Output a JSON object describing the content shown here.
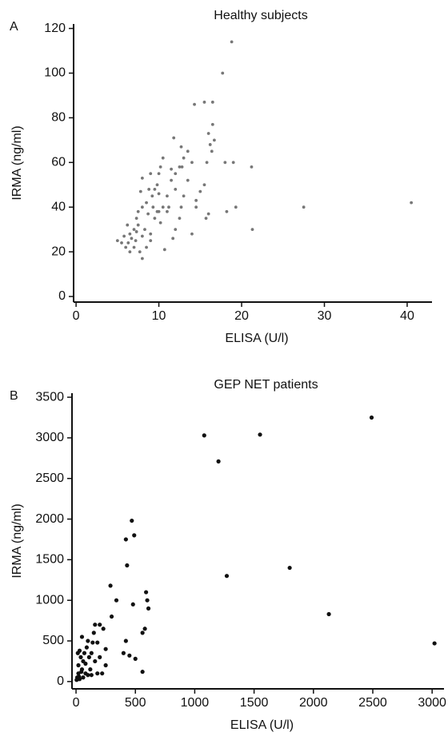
{
  "chart_data": [
    {
      "type": "scatter",
      "panel_label": "A",
      "title": "Healthy subjects",
      "x_label": "ELISA (U/l)",
      "y_label": "IRMA (ng/ml)",
      "color": "#777777",
      "xlim": [
        -0.3,
        43
      ],
      "ylim": [
        -2.5,
        122
      ],
      "xticks": [
        0,
        10,
        20,
        30,
        40
      ],
      "yticks": [
        0,
        20,
        40,
        60,
        80,
        100,
        120
      ],
      "grid": false,
      "x": [
        18.8,
        17.7,
        40.5,
        27.5,
        21.2,
        21.3,
        19,
        18,
        19.3,
        18.2,
        16.5,
        15.5,
        14.3,
        16.5,
        16,
        16.7,
        16.2,
        16.4,
        15.8,
        15.5,
        15,
        14.5,
        16,
        15.7,
        14,
        13.5,
        13,
        12.7,
        13.5,
        14,
        12.5,
        11.8,
        12,
        11.5,
        12,
        11,
        11.2,
        12.7,
        12.5,
        12,
        11.7,
        10.7,
        10.5,
        10.2,
        10,
        9.8,
        9.5,
        10,
        9.2,
        9,
        8.8,
        8.5,
        8,
        7.8,
        8,
        7.5,
        7.3,
        7.5,
        7,
        8.3,
        8,
        7.2,
        6.5,
        6.3,
        6,
        6.5,
        5.8,
        5.5,
        5,
        6.2,
        7,
        8,
        8.5,
        9,
        9.5,
        10,
        10.5,
        10.2,
        9.3,
        8.7,
        13,
        14.5,
        11,
        9,
        7.7,
        6.7,
        7.3,
        9.8,
        11.5,
        12.8
      ],
      "y": [
        114,
        100,
        42,
        40,
        58,
        30,
        60,
        60,
        40,
        38,
        87,
        87,
        86,
        77,
        73,
        70,
        68,
        65,
        60,
        50,
        47,
        40,
        37,
        35,
        28,
        52,
        62,
        67,
        65,
        60,
        58,
        71,
        55,
        52,
        48,
        45,
        40,
        40,
        35,
        30,
        26,
        21,
        62,
        58,
        55,
        50,
        48,
        46,
        45,
        55,
        48,
        42,
        53,
        47,
        40,
        38,
        35,
        32,
        30,
        30,
        27,
        25,
        28,
        24,
        22,
        20,
        27,
        24,
        25,
        32,
        22,
        17,
        22,
        25,
        35,
        38,
        40,
        33,
        40,
        37,
        45,
        43,
        38,
        28,
        20,
        26,
        29,
        38,
        57,
        58
      ]
    },
    {
      "type": "scatter",
      "panel_label": "B",
      "title": "GEP NET patients",
      "x_label": "ELISA (U/l)",
      "y_label": "IRMA (ng/ml)",
      "color": "#111111",
      "xlim": [
        -34,
        3100
      ],
      "ylim": [
        -90,
        3550
      ],
      "xticks": [
        0,
        500,
        1000,
        1500,
        2000,
        2500,
        3000
      ],
      "yticks": [
        0,
        500,
        1000,
        1500,
        2000,
        2500,
        3000,
        3500
      ],
      "grid": false,
      "x": [
        1080,
        1550,
        2490,
        1200,
        470,
        490,
        420,
        430,
        1270,
        1800,
        2130,
        3020,
        590,
        600,
        610,
        480,
        560,
        580,
        340,
        290,
        300,
        420,
        400,
        450,
        500,
        560,
        230,
        200,
        160,
        150,
        250,
        180,
        100,
        50,
        130,
        200,
        250,
        180,
        120,
        80,
        40,
        30,
        60,
        100,
        20,
        10,
        30,
        50,
        70,
        90,
        140,
        220,
        160,
        110,
        20,
        45,
        15,
        80,
        130,
        5,
        25,
        60
      ],
      "y": [
        3030,
        3040,
        3250,
        2710,
        1980,
        1800,
        1750,
        1430,
        1300,
        1400,
        830,
        470,
        1100,
        1000,
        900,
        950,
        600,
        650,
        1000,
        1180,
        800,
        500,
        350,
        320,
        280,
        120,
        650,
        700,
        700,
        600,
        400,
        480,
        500,
        550,
        350,
        300,
        200,
        100,
        150,
        220,
        300,
        380,
        250,
        80,
        100,
        50,
        30,
        150,
        350,
        420,
        480,
        100,
        250,
        300,
        200,
        120,
        350,
        100,
        80,
        20,
        60,
        50
      ]
    }
  ]
}
